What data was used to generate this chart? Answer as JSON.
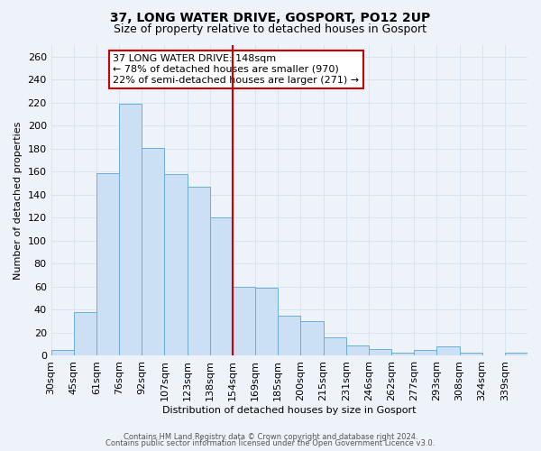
{
  "title": "37, LONG WATER DRIVE, GOSPORT, PO12 2UP",
  "subtitle": "Size of property relative to detached houses in Gosport",
  "xlabel": "Distribution of detached houses by size in Gosport",
  "ylabel": "Number of detached properties",
  "bin_labels": [
    "30sqm",
    "45sqm",
    "61sqm",
    "76sqm",
    "92sqm",
    "107sqm",
    "123sqm",
    "138sqm",
    "154sqm",
    "169sqm",
    "185sqm",
    "200sqm",
    "215sqm",
    "231sqm",
    "246sqm",
    "262sqm",
    "277sqm",
    "293sqm",
    "308sqm",
    "324sqm",
    "339sqm"
  ],
  "bar_values": [
    5,
    38,
    159,
    219,
    181,
    158,
    147,
    120,
    60,
    59,
    35,
    30,
    16,
    9,
    6,
    3,
    5,
    8,
    3,
    0,
    3
  ],
  "bar_color": "#cce0f5",
  "bar_edge_color": "#6aaed6",
  "grid_color": "#d8e4f0",
  "background_color": "#eef2f9",
  "marker_line_color": "#cc0000",
  "annotation_title": "37 LONG WATER DRIVE: 148sqm",
  "annotation_line1": "← 78% of detached houses are smaller (970)",
  "annotation_line2": "22% of semi-detached houses are larger (271) →",
  "annotation_box_facecolor": "#ffffff",
  "annotation_box_edgecolor": "#cc0000",
  "ylim": [
    0,
    270
  ],
  "yticks": [
    0,
    20,
    40,
    60,
    80,
    100,
    120,
    140,
    160,
    180,
    200,
    220,
    240,
    260
  ],
  "footer1": "Contains HM Land Registry data © Crown copyright and database right 2024.",
  "footer2": "Contains public sector information licensed under the Open Government Licence v3.0."
}
